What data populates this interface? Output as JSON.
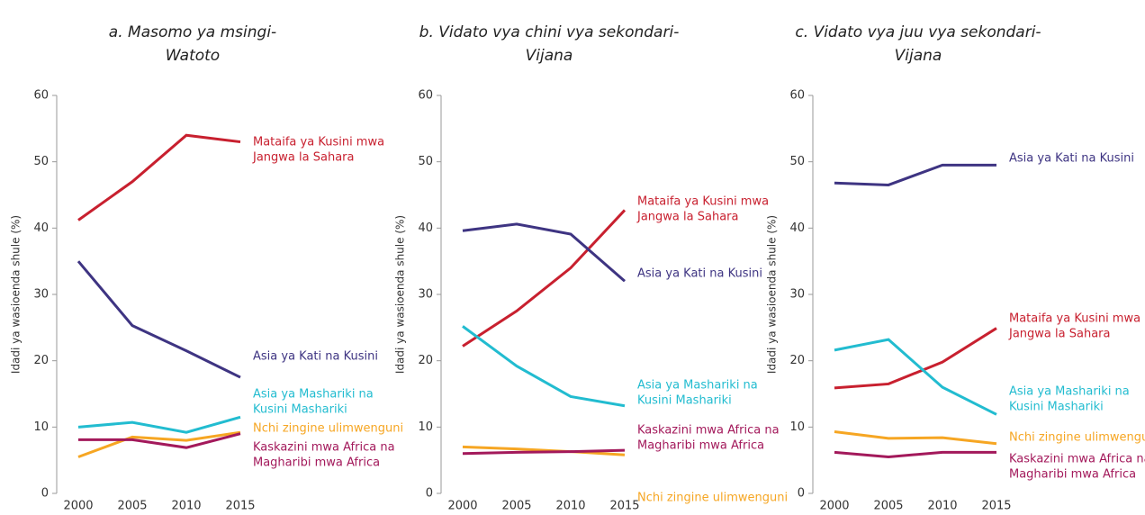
{
  "chart_data": [
    {
      "type": "line",
      "title": [
        "a. Masomo ya msingi-",
        "Watoto"
      ],
      "y_label": "Idadi ya wasioenda shule (%)",
      "x": [
        2000,
        2005,
        2010,
        2015
      ],
      "xlim": [
        1998,
        2017
      ],
      "xticks": [
        2000,
        2005,
        2010,
        2015
      ],
      "ylim": [
        0,
        60
      ],
      "yticks": [
        0,
        10,
        20,
        30,
        40,
        50,
        60
      ],
      "series": [
        {
          "name": [
            "Mataifa ya Kusini mwa",
            "Jangwa la Sahara"
          ],
          "color": "#c8202f",
          "values": [
            41.2,
            47,
            54,
            53
          ]
        },
        {
          "name": [
            "Asia ya Kati na Kusini"
          ],
          "color": "#3e3482",
          "values": [
            35,
            25.3,
            21.5,
            17.5
          ]
        },
        {
          "name": [
            "Asia ya Mashariki na",
            "Kusini Mashariki"
          ],
          "color": "#22bcd0",
          "values": [
            10,
            10.7,
            9.2,
            11.5
          ]
        },
        {
          "name": [
            "Nchi zingine ulimwenguni"
          ],
          "color": "#f6a623",
          "values": [
            5.5,
            8.5,
            8,
            9.2
          ]
        },
        {
          "name": [
            "Kaskazini  mwa Africa na",
            "Magharibi mwa Africa"
          ],
          "color": "#a3195b",
          "values": [
            8.1,
            8.1,
            6.9,
            9
          ]
        }
      ]
    },
    {
      "type": "line",
      "title": [
        "b. Vidato vya chini vya sekondari-",
        "Vijana"
      ],
      "y_label": "Idadi ya wasioenda shule (%)",
      "x": [
        2000,
        2005,
        2010,
        2015
      ],
      "xlim": [
        1998,
        2017
      ],
      "xticks": [
        2000,
        2005,
        2010,
        2015
      ],
      "ylim": [
        0,
        60
      ],
      "yticks": [
        0,
        10,
        20,
        30,
        40,
        50,
        60
      ],
      "series": [
        {
          "name": [
            "Mataifa ya Kusini mwa",
            "Jangwa la Sahara"
          ],
          "color": "#c8202f",
          "values": [
            22.2,
            27.5,
            34,
            42.7
          ]
        },
        {
          "name": [
            "Asia ya Kati na Kusini"
          ],
          "color": "#3e3482",
          "values": [
            39.6,
            40.6,
            39.1,
            32
          ]
        },
        {
          "name": [
            "Asia ya Mashariki na",
            "Kusini Mashariki"
          ],
          "color": "#22bcd0",
          "values": [
            25.2,
            19.2,
            14.6,
            13.2
          ]
        },
        {
          "name": [
            "Nchi zingine ulimwenguni"
          ],
          "color": "#f6a623",
          "values": [
            7,
            6.7,
            6.3,
            5.8
          ]
        },
        {
          "name": [
            "Kaskazini  mwa Africa na",
            "Magharibi mwa Africa"
          ],
          "color": "#a3195b",
          "values": [
            6,
            6.2,
            6.3,
            6.5
          ]
        }
      ]
    },
    {
      "type": "line",
      "title": [
        "c. Vidato vya juu vya sekondari-",
        "Vijana"
      ],
      "y_label": "Idadi ya wasioenda shule (%)",
      "x": [
        2000,
        2005,
        2010,
        2015
      ],
      "xlim": [
        1998,
        2017
      ],
      "xticks": [
        2000,
        2005,
        2010,
        2015
      ],
      "ylim": [
        0,
        60
      ],
      "yticks": [
        0,
        10,
        20,
        30,
        40,
        50,
        60
      ],
      "series": [
        {
          "name": [
            "Mataifa ya Kusini mwa",
            "Jangwa la Sahara"
          ],
          "color": "#c8202f",
          "values": [
            15.9,
            16.5,
            19.8,
            24.9
          ]
        },
        {
          "name": [
            "Asia ya Kati na Kusini"
          ],
          "color": "#3e3482",
          "values": [
            46.8,
            46.5,
            49.5,
            49.5
          ]
        },
        {
          "name": [
            "Asia ya Mashariki na",
            "Kusini Mashariki"
          ],
          "color": "#22bcd0",
          "values": [
            21.6,
            23.2,
            16,
            11.9
          ]
        },
        {
          "name": [
            "Nchi zingine ulimwenguni"
          ],
          "color": "#f6a623",
          "values": [
            9.3,
            8.3,
            8.4,
            7.5
          ]
        },
        {
          "name": [
            "Kaskazini  mwa Africa na",
            "Magharibi mwa Africa"
          ],
          "color": "#a3195b",
          "values": [
            6.2,
            5.5,
            6.2,
            6.2
          ]
        }
      ]
    }
  ]
}
